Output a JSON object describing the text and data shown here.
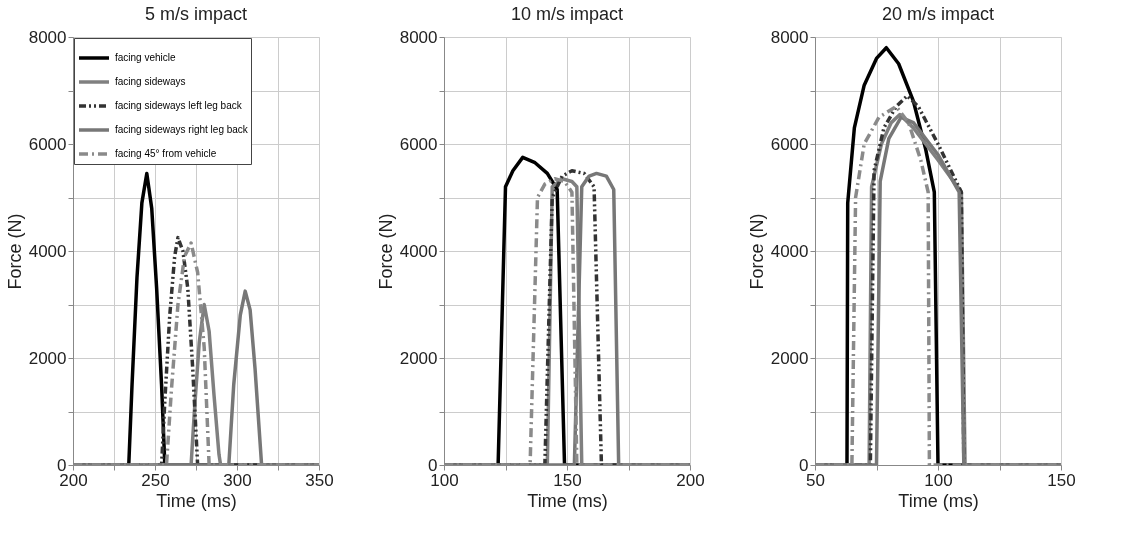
{
  "chart_data": [
    {
      "type": "line",
      "title": "5 m/s impact",
      "xlabel": "Time (ms)",
      "ylabel": "Force (N)",
      "xlim": [
        200,
        350
      ],
      "ylim": [
        0,
        8000
      ],
      "xticks": [
        200,
        {
          "value": 225,
          "label": null
        },
        250,
        {
          "value": 275,
          "label": null
        },
        300,
        {
          "value": 325,
          "label": null
        },
        350
      ],
      "yticks": [
        0,
        {
          "value": 1000,
          "label": null
        },
        2000,
        {
          "value": 3000,
          "label": null
        },
        4000,
        {
          "value": 5000,
          "label": null
        },
        6000,
        {
          "value": 7000,
          "label": null
        },
        8000
      ],
      "grid": true,
      "legend": "top left",
      "series": [
        {
          "name": "facing vehicle",
          "color": "#000000",
          "line_style": "solid",
          "x": [
            200,
            234,
            236,
            239,
            242,
            245,
            248,
            251,
            254,
            256,
            350
          ],
          "values": [
            0,
            0,
            1500,
            3500,
            4900,
            5450,
            4800,
            3300,
            1500,
            0,
            0
          ]
        },
        {
          "name": "facing sideways",
          "color": "#808080",
          "line_style": "solid",
          "x": [
            200,
            272,
            274,
            277,
            280,
            283,
            286,
            289,
            290,
            350
          ],
          "values": [
            0,
            0,
            1000,
            2300,
            3000,
            2500,
            1300,
            200,
            0,
            0
          ]
        },
        {
          "name": "facing sideways left leg back",
          "color": "#333333",
          "line_style": "dashed",
          "x": [
            200,
            254,
            256,
            259,
            262,
            264,
            267,
            270,
            273,
            276,
            350
          ],
          "values": [
            0,
            0,
            1200,
            2800,
            3900,
            4250,
            4000,
            3300,
            1800,
            0,
            0
          ]
        },
        {
          "name": "facing sideways right leg back",
          "color": "#777777",
          "line_style": "solid",
          "x": [
            200,
            295,
            298,
            302,
            305,
            308,
            311,
            315,
            350
          ],
          "values": [
            0,
            0,
            1500,
            2800,
            3250,
            2900,
            1800,
            0,
            0
          ]
        },
        {
          "name": "facing 45° from vehicle",
          "color": "#8a8a8a",
          "line_style": "dotted",
          "x": [
            200,
            257,
            260,
            264,
            268,
            272,
            276,
            280,
            283,
            350
          ],
          "values": [
            0,
            0,
            1400,
            3000,
            3900,
            4150,
            3600,
            2200,
            0,
            0
          ]
        }
      ]
    },
    {
      "type": "line",
      "title": "10 m/s impact",
      "xlabel": "Time (ms)",
      "ylabel": "Force (N)",
      "xlim": [
        100,
        200
      ],
      "ylim": [
        0,
        8000
      ],
      "xticks": [
        100,
        {
          "value": 125,
          "label": null
        },
        150,
        {
          "value": 175,
          "label": null
        },
        200
      ],
      "yticks": [
        0,
        {
          "value": 1000,
          "label": null
        },
        2000,
        {
          "value": 3000,
          "label": null
        },
        4000,
        {
          "value": 5000,
          "label": null
        },
        6000,
        {
          "value": 7000,
          "label": null
        },
        8000
      ],
      "grid": true,
      "legend": false,
      "series": [
        {
          "color": "#000000",
          "line_style": "solid",
          "x": [
            100,
            122,
            125,
            128,
            132,
            137,
            142,
            146,
            149,
            200
          ],
          "values": [
            0,
            0,
            5200,
            5500,
            5750,
            5650,
            5450,
            5150,
            0,
            0
          ]
        },
        {
          "color": "#808080",
          "line_style": "solid",
          "x": [
            100,
            142,
            144,
            148,
            152,
            154,
            156,
            200
          ],
          "values": [
            0,
            0,
            5200,
            5350,
            5300,
            5200,
            0,
            0
          ]
        },
        {
          "color": "#333333",
          "line_style": "dashed",
          "x": [
            100,
            141,
            144,
            148,
            152,
            157,
            161,
            164,
            200
          ],
          "values": [
            0,
            0,
            5000,
            5400,
            5500,
            5450,
            5200,
            0,
            0
          ]
        },
        {
          "color": "#777777",
          "line_style": "solid",
          "x": [
            100,
            153,
            156,
            159,
            162,
            166,
            169,
            171,
            200
          ],
          "values": [
            0,
            0,
            5200,
            5400,
            5450,
            5400,
            5150,
            0,
            0
          ]
        },
        {
          "color": "#8a8a8a",
          "line_style": "dotted",
          "x": [
            100,
            135,
            138,
            141,
            145,
            149,
            152,
            154,
            200
          ],
          "values": [
            0,
            0,
            5000,
            5250,
            5350,
            5300,
            5100,
            0,
            0
          ]
        }
      ]
    },
    {
      "type": "line",
      "title": "20 m/s impact",
      "xlabel": "Time (ms)",
      "ylabel": "Force (N)",
      "xlim": [
        50,
        150
      ],
      "ylim": [
        0,
        8000
      ],
      "xticks": [
        50,
        {
          "value": 75,
          "label": null
        },
        100,
        {
          "value": 125,
          "label": null
        },
        150
      ],
      "yticks": [
        0,
        {
          "value": 1000,
          "label": null
        },
        2000,
        {
          "value": 3000,
          "label": null
        },
        4000,
        {
          "value": 5000,
          "label": null
        },
        6000,
        {
          "value": 7000,
          "label": null
        },
        8000
      ],
      "grid": true,
      "legend": false,
      "series": [
        {
          "color": "#000000",
          "line_style": "solid",
          "x": [
            50,
            63,
            63.3,
            66,
            70,
            75,
            79,
            84,
            90,
            95,
            98.5,
            100,
            150
          ],
          "values": [
            0,
            0,
            4900,
            6300,
            7100,
            7600,
            7800,
            7500,
            6800,
            5900,
            5100,
            0,
            0
          ]
        },
        {
          "color": "#808080",
          "line_style": "solid",
          "x": [
            50,
            72,
            73,
            77,
            81,
            84.5,
            90,
            100,
            109.5,
            111,
            150
          ],
          "values": [
            0,
            0,
            5200,
            6000,
            6400,
            6550,
            6300,
            5700,
            5100,
            0,
            0
          ]
        },
        {
          "color": "#333333",
          "line_style": "dashed",
          "x": [
            50,
            72.5,
            74,
            78,
            83,
            87.5,
            92,
            100,
            109.5,
            110.5,
            150
          ],
          "values": [
            0,
            0,
            5500,
            6300,
            6700,
            6900,
            6700,
            6000,
            5100,
            0,
            0
          ]
        },
        {
          "color": "#777777",
          "line_style": "solid",
          "x": [
            50,
            75,
            76.5,
            80,
            85,
            90,
            100,
            108.6,
            110.5,
            150
          ],
          "values": [
            0,
            0,
            5300,
            6100,
            6500,
            6400,
            5800,
            5100,
            0,
            0
          ]
        },
        {
          "color": "#8a8a8a",
          "line_style": "dotted",
          "x": [
            50,
            65,
            66.5,
            70,
            76,
            83,
            88,
            93,
            96,
            96.5,
            150
          ],
          "values": [
            0,
            0,
            5000,
            6000,
            6500,
            6700,
            6400,
            5700,
            5100,
            0,
            0
          ]
        }
      ]
    }
  ]
}
